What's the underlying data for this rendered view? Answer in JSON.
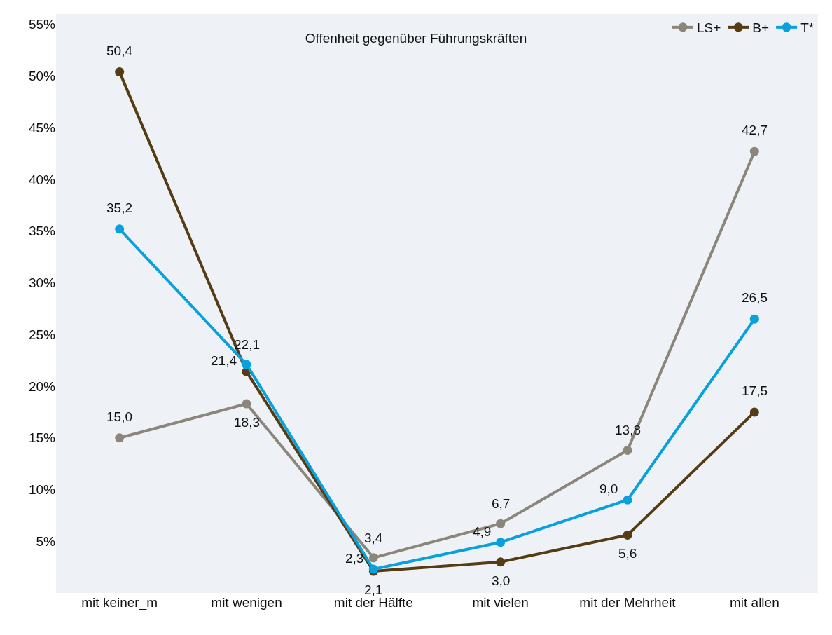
{
  "chart_data": {
    "type": "line",
    "title": "Offenheit gegenüber Führungskräften",
    "categories": [
      "mit keiner_m",
      "mit wenigen",
      "mit der Hälfte",
      "mit vielen",
      "mit der Mehrheit",
      "mit allen"
    ],
    "series": [
      {
        "name": "LS+",
        "color": "#8c857a",
        "values": [
          15.0,
          18.3,
          3.4,
          6.7,
          13.8,
          42.7
        ],
        "value_labels": [
          "15,0",
          "18,3",
          "3,4",
          "6,7",
          "13,8",
          "42,7"
        ]
      },
      {
        "name": "B+",
        "color": "#553c14",
        "values": [
          50.4,
          21.4,
          2.1,
          3.0,
          5.6,
          17.5
        ],
        "value_labels": [
          "50,4",
          "21,4",
          "2,1",
          "3,0",
          "5,6",
          "17,5"
        ]
      },
      {
        "name": "T*",
        "color": "#0aa0dc",
        "values": [
          35.2,
          22.1,
          2.3,
          4.9,
          9.0,
          26.5
        ],
        "value_labels": [
          "35,2",
          "22,1",
          "2,3",
          "4,9",
          "9,0",
          "26,5"
        ]
      }
    ],
    "ylim": [
      0,
      56
    ],
    "yticks": [
      {
        "value": 5,
        "label": "5%"
      },
      {
        "value": 10,
        "label": "10%"
      },
      {
        "value": 15,
        "label": "15%"
      },
      {
        "value": 20,
        "label": "20%"
      },
      {
        "value": 25,
        "label": "25%"
      },
      {
        "value": 30,
        "label": "30%"
      },
      {
        "value": 35,
        "label": "35%"
      },
      {
        "value": 40,
        "label": "40%"
      },
      {
        "value": 45,
        "label": "45%"
      },
      {
        "value": 50,
        "label": "50%"
      },
      {
        "value": 55,
        "label": "55%"
      }
    ],
    "grid": false,
    "legend": "top right",
    "marker": "circle",
    "line_style": "solid"
  }
}
